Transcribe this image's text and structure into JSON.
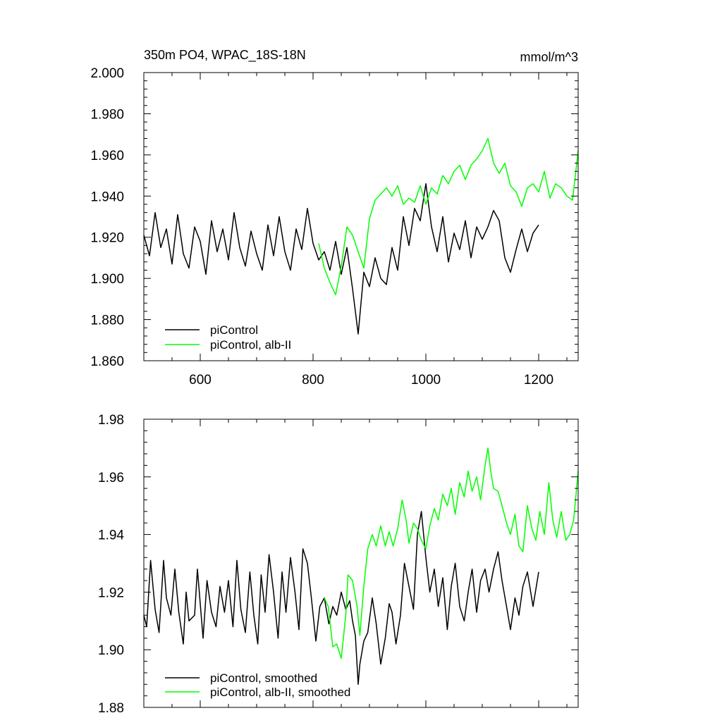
{
  "chart_data": [
    {
      "type": "line",
      "title": "350m PO4, WPAC_18S-18N",
      "units": "mmol/m^3",
      "xlim": [
        500,
        1270
      ],
      "ylim": [
        1.86,
        2.0
      ],
      "xticks": [
        600,
        800,
        1000,
        1200
      ],
      "xtick_labels": [
        "600",
        "800",
        "1000",
        "1200"
      ],
      "yticks": [
        1.86,
        1.88,
        1.9,
        1.92,
        1.94,
        1.96,
        1.98,
        2.0
      ],
      "ytick_labels": [
        "1.860",
        "1.880",
        "1.900",
        "1.920",
        "1.940",
        "1.960",
        "1.980",
        "2.000"
      ],
      "grid": false,
      "legend_position": "bottom-left",
      "series": [
        {
          "name": "piControl",
          "color": "#000000",
          "x": [
            500,
            510,
            520,
            530,
            540,
            550,
            560,
            570,
            580,
            590,
            600,
            610,
            620,
            630,
            640,
            650,
            660,
            670,
            680,
            690,
            700,
            710,
            720,
            730,
            740,
            750,
            760,
            770,
            780,
            790,
            800,
            810,
            820,
            830,
            840,
            850,
            860,
            870,
            880,
            890,
            900,
            910,
            920,
            930,
            940,
            950,
            960,
            970,
            980,
            990,
            1000,
            1010,
            1020,
            1030,
            1040,
            1050,
            1060,
            1070,
            1080,
            1090,
            1100,
            1110,
            1120,
            1130,
            1140,
            1150,
            1160,
            1170,
            1180,
            1190,
            1200
          ],
          "values": [
            1.921,
            1.911,
            1.932,
            1.915,
            1.924,
            1.907,
            1.931,
            1.912,
            1.905,
            1.925,
            1.918,
            1.902,
            1.928,
            1.913,
            1.924,
            1.909,
            1.932,
            1.915,
            1.906,
            1.923,
            1.912,
            1.904,
            1.926,
            1.911,
            1.93,
            1.913,
            1.904,
            1.924,
            1.914,
            1.934,
            1.917,
            1.909,
            1.913,
            1.904,
            1.918,
            1.902,
            1.915,
            1.895,
            1.873,
            1.903,
            1.896,
            1.91,
            1.9,
            1.897,
            1.915,
            1.904,
            1.93,
            1.916,
            1.934,
            1.928,
            1.946,
            1.925,
            1.913,
            1.93,
            1.908,
            1.922,
            1.914,
            1.928,
            1.91,
            1.925,
            1.919,
            1.925,
            1.933,
            1.928,
            1.91,
            1.903,
            1.914,
            1.924,
            1.913,
            1.922,
            1.926
          ]
        },
        {
          "name": "piControl, alb-II",
          "color": "#00ff00",
          "x": [
            810,
            820,
            830,
            840,
            850,
            860,
            870,
            880,
            890,
            900,
            910,
            920,
            930,
            940,
            950,
            960,
            970,
            980,
            990,
            1000,
            1010,
            1020,
            1030,
            1040,
            1050,
            1060,
            1070,
            1080,
            1090,
            1100,
            1110,
            1120,
            1130,
            1140,
            1150,
            1160,
            1170,
            1180,
            1190,
            1200,
            1210,
            1220,
            1230,
            1240,
            1250,
            1260,
            1270
          ],
          "values": [
            1.917,
            1.905,
            1.898,
            1.892,
            1.906,
            1.925,
            1.921,
            1.913,
            1.905,
            1.929,
            1.938,
            1.941,
            1.944,
            1.94,
            1.945,
            1.936,
            1.939,
            1.937,
            1.945,
            1.936,
            1.944,
            1.941,
            1.95,
            1.946,
            1.952,
            1.955,
            1.948,
            1.955,
            1.958,
            1.962,
            1.968,
            1.956,
            1.951,
            1.956,
            1.945,
            1.942,
            1.935,
            1.944,
            1.946,
            1.942,
            1.952,
            1.939,
            1.946,
            1.944,
            1.94,
            1.938,
            1.962
          ]
        }
      ],
      "legend": {
        "entries": [
          "piControl",
          "piControl, alb-II"
        ]
      }
    },
    {
      "type": "line",
      "xlim": [
        500,
        1270
      ],
      "ylim": [
        1.88,
        1.98
      ],
      "xticks": [
        600,
        800,
        1000,
        1200
      ],
      "yticks": [
        1.88,
        1.9,
        1.92,
        1.94,
        1.96,
        1.98
      ],
      "ytick_labels": [
        "1.88",
        "1.90",
        "1.92",
        "1.94",
        "1.96",
        "1.98"
      ],
      "grid": false,
      "legend_position": "bottom-left",
      "series": [
        {
          "name": "piControl, smoothed",
          "color": "#000000",
          "x": [
            500,
            505,
            512,
            520,
            527,
            535,
            540,
            548,
            555,
            562,
            570,
            575,
            580,
            590,
            595,
            605,
            612,
            620,
            628,
            635,
            643,
            650,
            658,
            665,
            672,
            680,
            688,
            695,
            702,
            708,
            715,
            722,
            730,
            738,
            745,
            752,
            760,
            768,
            775,
            782,
            790,
            797,
            805,
            812,
            820,
            828,
            835,
            842,
            850,
            858,
            865,
            870,
            875,
            880,
            883,
            890,
            897,
            905,
            912,
            920,
            928,
            935,
            940,
            947,
            955,
            962,
            970,
            978,
            985,
            992,
            1000,
            1007,
            1015,
            1022,
            1030,
            1038,
            1045,
            1052,
            1060,
            1068,
            1075,
            1082,
            1090,
            1097,
            1105,
            1112,
            1120,
            1128,
            1135,
            1143,
            1150,
            1158,
            1165,
            1172,
            1180,
            1190,
            1200
          ],
          "values": [
            1.912,
            1.908,
            1.931,
            1.914,
            1.906,
            1.931,
            1.918,
            1.912,
            1.928,
            1.913,
            1.902,
            1.92,
            1.91,
            1.912,
            1.928,
            1.904,
            1.924,
            1.913,
            1.908,
            1.922,
            1.913,
            1.924,
            1.908,
            1.931,
            1.914,
            1.906,
            1.927,
            1.912,
            1.902,
            1.926,
            1.913,
            1.933,
            1.92,
            1.904,
            1.927,
            1.913,
            1.932,
            1.92,
            1.907,
            1.935,
            1.93,
            1.918,
            1.903,
            1.915,
            1.918,
            1.909,
            1.915,
            1.912,
            1.92,
            1.914,
            1.917,
            1.91,
            1.905,
            1.888,
            1.895,
            1.903,
            1.906,
            1.918,
            1.909,
            1.895,
            1.904,
            1.916,
            1.913,
            1.902,
            1.912,
            1.93,
            1.922,
            1.914,
            1.94,
            1.948,
            1.932,
            1.92,
            1.928,
            1.915,
            1.925,
            1.907,
            1.922,
            1.93,
            1.915,
            1.91,
            1.92,
            1.928,
            1.913,
            1.924,
            1.928,
            1.92,
            1.928,
            1.934,
            1.924,
            1.915,
            1.907,
            1.918,
            1.912,
            1.922,
            1.927,
            1.915,
            1.927
          ]
        },
        {
          "name": "piControl, alb-II, smoothed",
          "color": "#00ff00",
          "x": [
            820,
            827,
            835,
            842,
            850,
            858,
            862,
            870,
            878,
            883,
            890,
            897,
            905,
            912,
            920,
            928,
            935,
            942,
            950,
            958,
            965,
            970,
            978,
            985,
            992,
            1000,
            1007,
            1015,
            1022,
            1030,
            1038,
            1045,
            1052,
            1060,
            1068,
            1075,
            1082,
            1090,
            1097,
            1105,
            1110,
            1115,
            1120,
            1128,
            1135,
            1143,
            1150,
            1158,
            1165,
            1172,
            1180,
            1188,
            1195,
            1202,
            1210,
            1218,
            1225,
            1232,
            1240,
            1248,
            1255,
            1262,
            1270
          ],
          "values": [
            1.918,
            1.915,
            1.901,
            1.902,
            1.897,
            1.912,
            1.926,
            1.924,
            1.915,
            1.905,
            1.922,
            1.935,
            1.94,
            1.936,
            1.943,
            1.936,
            1.941,
            1.936,
            1.942,
            1.952,
            1.945,
            1.937,
            1.944,
            1.942,
            1.938,
            1.935,
            1.943,
            1.949,
            1.945,
            1.954,
            1.95,
            1.956,
            1.947,
            1.958,
            1.953,
            1.962,
            1.955,
            1.96,
            1.952,
            1.964,
            1.97,
            1.962,
            1.956,
            1.955,
            1.95,
            1.944,
            1.94,
            1.947,
            1.936,
            1.934,
            1.95,
            1.942,
            1.938,
            1.948,
            1.94,
            1.958,
            1.945,
            1.939,
            1.948,
            1.938,
            1.94,
            1.945,
            1.962
          ]
        }
      ],
      "legend": {
        "entries": [
          "piControl, smoothed",
          "piControl, alb-II, smoothed"
        ]
      }
    }
  ]
}
